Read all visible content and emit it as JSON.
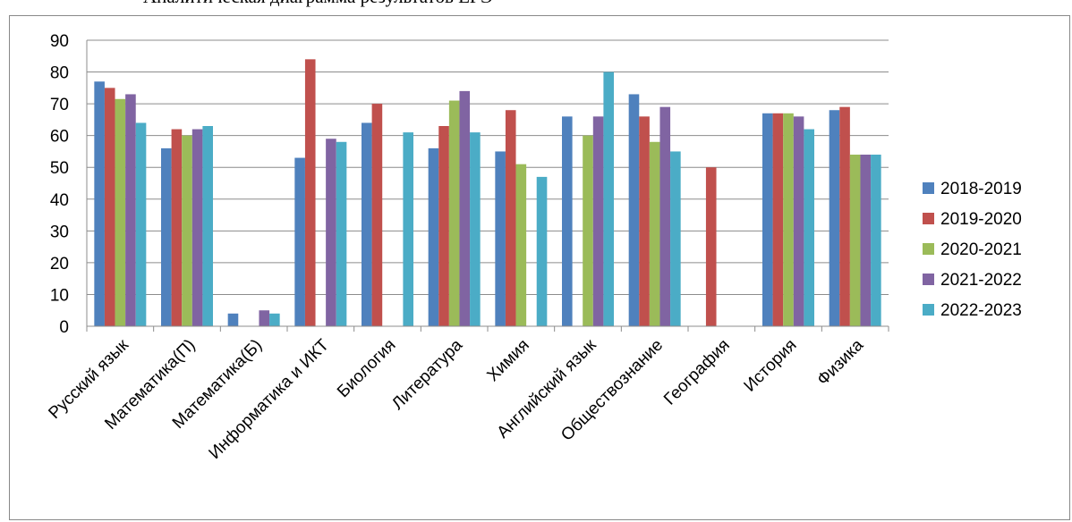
{
  "title": "Аналитическая диаграмма результатов ЕГЭ",
  "chart_data": {
    "type": "bar",
    "categories": [
      "Русский язык",
      "Математика(П)",
      "Математика(Б)",
      "Информатика и ИКТ",
      "Биология",
      "Литература",
      "Химия",
      "Английский язык",
      "Обществознание",
      "География",
      "История",
      "Физика"
    ],
    "ylim": [
      0,
      90
    ],
    "yticks": [
      0,
      10,
      20,
      30,
      40,
      50,
      60,
      70,
      80,
      90
    ],
    "grid": true,
    "legend_position": "right",
    "series": [
      {
        "name": "2018-2019",
        "color": "#4F81BD",
        "values": [
          77,
          56,
          4,
          53,
          64,
          56,
          55,
          66,
          73,
          null,
          67,
          68
        ]
      },
      {
        "name": "2019-2020",
        "color": "#C0504D",
        "values": [
          75,
          62,
          null,
          84,
          70,
          63,
          68,
          null,
          66,
          50,
          67,
          69
        ]
      },
      {
        "name": "2020-2021",
        "color": "#9BBB59",
        "values": [
          71.5,
          60,
          null,
          null,
          null,
          71,
          51,
          60,
          58,
          null,
          67,
          54
        ]
      },
      {
        "name": "2021-2022",
        "color": "#8064A2",
        "values": [
          73,
          62,
          5,
          59,
          null,
          74,
          null,
          66,
          69,
          null,
          66,
          54
        ]
      },
      {
        "name": "2022-2023",
        "color": "#4BACC6",
        "values": [
          64,
          63,
          4,
          58,
          61,
          61,
          47,
          80,
          55,
          null,
          62,
          54
        ]
      }
    ]
  }
}
